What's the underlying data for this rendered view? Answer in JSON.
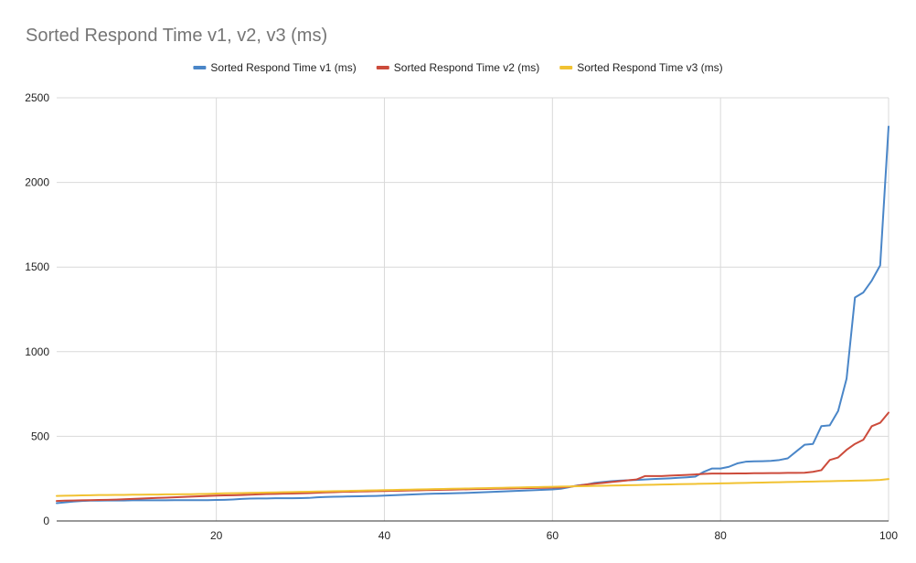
{
  "chart_data": {
    "type": "line",
    "title": "Sorted Respond Time v1, v2, v3 (ms)",
    "xlabel": "",
    "ylabel": "",
    "xlim": [
      1,
      100
    ],
    "ylim": [
      0,
      2500
    ],
    "x_ticks": [
      20,
      40,
      60,
      80,
      100
    ],
    "y_ticks": [
      0,
      500,
      1000,
      1500,
      2000,
      2500
    ],
    "grid": true,
    "legend_position": "top",
    "x": [
      1,
      2,
      3,
      4,
      5,
      6,
      7,
      8,
      9,
      10,
      11,
      12,
      13,
      14,
      15,
      16,
      17,
      18,
      19,
      20,
      21,
      22,
      23,
      24,
      25,
      26,
      27,
      28,
      29,
      30,
      31,
      32,
      33,
      34,
      35,
      36,
      37,
      38,
      39,
      40,
      41,
      42,
      43,
      44,
      45,
      46,
      47,
      48,
      49,
      50,
      51,
      52,
      53,
      54,
      55,
      56,
      57,
      58,
      59,
      60,
      61,
      62,
      63,
      64,
      65,
      66,
      67,
      68,
      69,
      70,
      71,
      72,
      73,
      74,
      75,
      76,
      77,
      78,
      79,
      80,
      81,
      82,
      83,
      84,
      85,
      86,
      87,
      88,
      89,
      90,
      91,
      92,
      93,
      94,
      95,
      96,
      97,
      98,
      99,
      100
    ],
    "series": [
      {
        "name": "Sorted Respond Time v1 (ms)",
        "color": "#4a86c8",
        "values": [
          105,
          110,
          115,
          118,
          120,
          120,
          121,
          121,
          121,
          122,
          122,
          122,
          122,
          122,
          123,
          123,
          123,
          123,
          123,
          124,
          125,
          127,
          130,
          132,
          133,
          133,
          134,
          134,
          134,
          135,
          136,
          140,
          142,
          143,
          144,
          145,
          146,
          147,
          148,
          150,
          152,
          154,
          156,
          158,
          160,
          161,
          162,
          163,
          165,
          166,
          168,
          170,
          172,
          174,
          176,
          178,
          180,
          182,
          184,
          186,
          190,
          200,
          210,
          215,
          225,
          230,
          235,
          238,
          240,
          242,
          245,
          248,
          250,
          252,
          255,
          258,
          262,
          290,
          310,
          310,
          320,
          340,
          350,
          352,
          353,
          355,
          360,
          370,
          410,
          450,
          455,
          560,
          565,
          650,
          840,
          1320,
          1350,
          1420,
          1510,
          2330
        ]
      },
      {
        "name": "Sorted Respond Time v2 (ms)",
        "color": "#cc4b3b",
        "values": [
          118,
          120,
          121,
          122,
          123,
          124,
          125,
          126,
          128,
          130,
          132,
          134,
          136,
          138,
          140,
          142,
          144,
          146,
          148,
          150,
          151,
          152,
          153,
          155,
          157,
          159,
          160,
          161,
          162,
          163,
          165,
          167,
          169,
          170,
          172,
          173,
          174,
          175,
          176,
          177,
          178,
          179,
          180,
          181,
          182,
          183,
          184,
          185,
          186,
          187,
          188,
          189,
          190,
          191,
          192,
          193,
          194,
          195,
          196,
          197,
          198,
          202,
          208,
          215,
          220,
          225,
          230,
          235,
          240,
          245,
          265,
          265,
          265,
          268,
          270,
          272,
          275,
          278,
          280,
          280,
          280,
          281,
          281,
          282,
          282,
          283,
          283,
          284,
          284,
          285,
          290,
          300,
          360,
          375,
          420,
          455,
          480,
          560,
          580,
          640
        ]
      },
      {
        "name": "Sorted Respond Time v3 (ms)",
        "color": "#f1c232",
        "values": [
          148,
          149,
          150,
          151,
          152,
          153,
          153,
          154,
          154,
          155,
          155,
          156,
          156,
          157,
          157,
          158,
          158,
          159,
          160,
          162,
          163,
          164,
          165,
          166,
          167,
          168,
          169,
          170,
          171,
          172,
          173,
          174,
          175,
          176,
          177,
          178,
          179,
          180,
          181,
          182,
          183,
          184,
          185,
          186,
          187,
          188,
          189,
          190,
          191,
          192,
          193,
          194,
          195,
          196,
          197,
          198,
          199,
          200,
          201,
          202,
          203,
          204,
          205,
          206,
          207,
          208,
          209,
          210,
          211,
          212,
          213,
          214,
          215,
          216,
          217,
          218,
          219,
          220,
          221,
          222,
          223,
          224,
          225,
          226,
          227,
          228,
          229,
          230,
          231,
          232,
          233,
          234,
          235,
          236,
          237,
          238,
          239,
          240,
          242,
          248
        ]
      }
    ]
  }
}
